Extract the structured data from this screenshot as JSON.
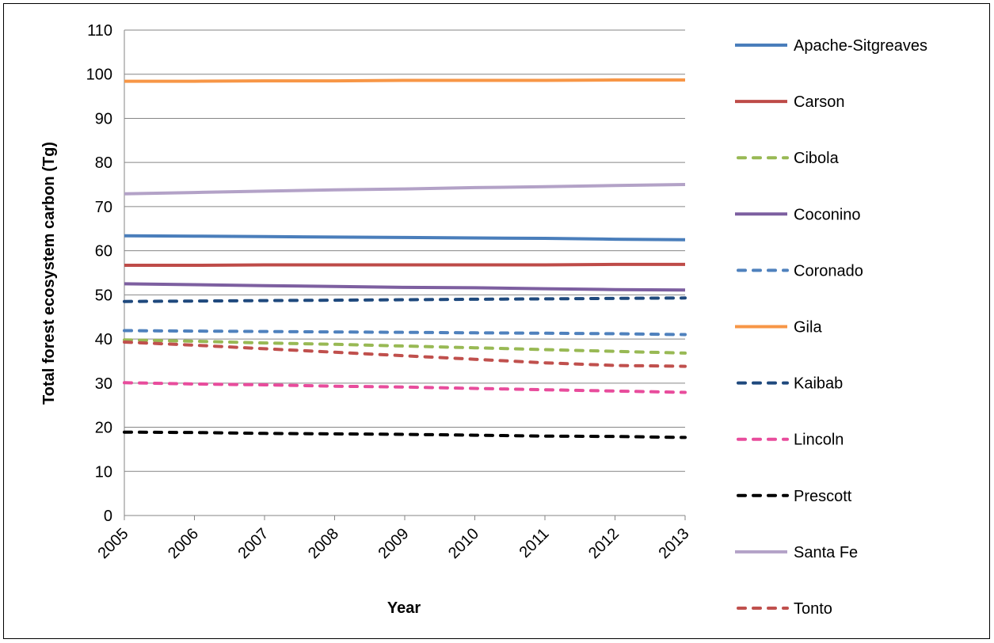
{
  "chart_data": {
    "type": "line",
    "title": "",
    "xlabel": "Year",
    "ylabel": "Total forest ecosystem carbon (Tg)",
    "x": [
      "2005",
      "2006",
      "2007",
      "2008",
      "2009",
      "2010",
      "2011",
      "2012",
      "2013"
    ],
    "ylim": [
      0,
      110
    ],
    "yticks": [
      0,
      10,
      20,
      30,
      40,
      50,
      60,
      70,
      80,
      90,
      100,
      110
    ],
    "grid": true,
    "legend_position": "right",
    "series": [
      {
        "name": "Apache-Sitgreaves",
        "color": "#4a7ebb",
        "dash": false,
        "values": [
          63.4,
          63.3,
          63.2,
          63.1,
          63.0,
          62.9,
          62.8,
          62.6,
          62.5
        ]
      },
      {
        "name": "Carson",
        "color": "#be4b48",
        "dash": false,
        "values": [
          56.7,
          56.7,
          56.8,
          56.8,
          56.8,
          56.8,
          56.8,
          56.9,
          56.9
        ]
      },
      {
        "name": "Cibola",
        "color": "#98b954",
        "dash": true,
        "values": [
          39.8,
          39.5,
          39.1,
          38.8,
          38.4,
          38.0,
          37.6,
          37.2,
          36.8
        ]
      },
      {
        "name": "Coconino",
        "color": "#7d5fa0",
        "dash": false,
        "values": [
          52.5,
          52.3,
          52.1,
          51.9,
          51.7,
          51.6,
          51.4,
          51.2,
          51.1
        ]
      },
      {
        "name": "Coronado",
        "color": "#4f81bd",
        "dash": true,
        "values": [
          41.9,
          41.8,
          41.7,
          41.6,
          41.5,
          41.4,
          41.3,
          41.2,
          41.0
        ]
      },
      {
        "name": "Gila",
        "color": "#f79646",
        "dash": false,
        "values": [
          98.4,
          98.4,
          98.5,
          98.5,
          98.6,
          98.6,
          98.6,
          98.7,
          98.7
        ]
      },
      {
        "name": "Kaibab",
        "color": "#1f497d",
        "dash": true,
        "values": [
          48.5,
          48.6,
          48.7,
          48.8,
          48.9,
          49.0,
          49.1,
          49.2,
          49.3
        ]
      },
      {
        "name": "Lincoln",
        "color": "#e84c9c",
        "dash": true,
        "values": [
          30.1,
          29.8,
          29.6,
          29.3,
          29.1,
          28.8,
          28.5,
          28.2,
          27.9
        ]
      },
      {
        "name": "Prescott",
        "color": "#000000",
        "dash": true,
        "values": [
          18.9,
          18.8,
          18.6,
          18.5,
          18.4,
          18.2,
          18.0,
          17.9,
          17.7
        ]
      },
      {
        "name": "Santa Fe",
        "color": "#b3a2c7",
        "dash": false,
        "values": [
          72.9,
          73.2,
          73.5,
          73.8,
          74.0,
          74.3,
          74.5,
          74.8,
          75.0
        ]
      },
      {
        "name": "Tonto",
        "color": "#c0504d",
        "dash": true,
        "values": [
          39.3,
          38.6,
          37.8,
          37.0,
          36.2,
          35.4,
          34.6,
          34.0,
          33.8
        ]
      }
    ]
  }
}
